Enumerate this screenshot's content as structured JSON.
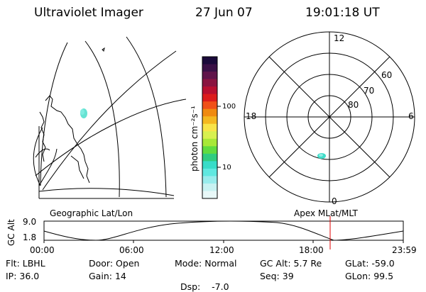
{
  "header": {
    "title": "Ultraviolet Imager",
    "date": "27 Jun 07",
    "time": "19:01:18 UT"
  },
  "colorbar": {
    "unit_label": "photon cm⁻²s⁻¹",
    "ticks": [
      "100",
      "10"
    ],
    "colors": [
      "#1a0a3a",
      "#3a1046",
      "#60144a",
      "#8a1440",
      "#b81030",
      "#dc1c1c",
      "#f05018",
      "#f08a10",
      "#f4b820",
      "#f8e448",
      "#d8f050",
      "#a8e838",
      "#60dc40",
      "#30cc80",
      "#38dcc8",
      "#60e8e0",
      "#98ecec",
      "#c8f2f2",
      "#e8f8f8"
    ]
  },
  "polar": {
    "mlt_labels": {
      "top": "12",
      "left": "18",
      "right": "6",
      "bottom": "0"
    },
    "lat_labels": [
      "60",
      "70",
      "80"
    ]
  },
  "strip": {
    "ylabel": "GC Alt",
    "y_ticks": [
      "9.0",
      "1.8"
    ],
    "left_title": "Geographic Lat/Lon",
    "right_title": "Apex MLat/MLT",
    "x_ticks": [
      "00:00",
      "06:00",
      "12:00",
      "18:00",
      "23:59"
    ]
  },
  "info": {
    "row1": [
      {
        "label": "Flt:",
        "value": "LBHL"
      },
      {
        "label": "Door:",
        "value": "Open"
      },
      {
        "label": "Mode:",
        "value": "Normal"
      },
      {
        "label": "GC Alt:",
        "value": "5.7 Re"
      },
      {
        "label": "GLat:",
        "value": "-59.0"
      }
    ],
    "row2": [
      {
        "label": "IP:",
        "value": "36.0"
      },
      {
        "label": "Gain:",
        "value": "14"
      },
      {
        "label": "Dsp:",
        "value": "   -7.0"
      },
      {
        "label": "Seq:",
        "value": "39"
      },
      {
        "label": "GLon:",
        "value": "99.5"
      }
    ]
  }
}
